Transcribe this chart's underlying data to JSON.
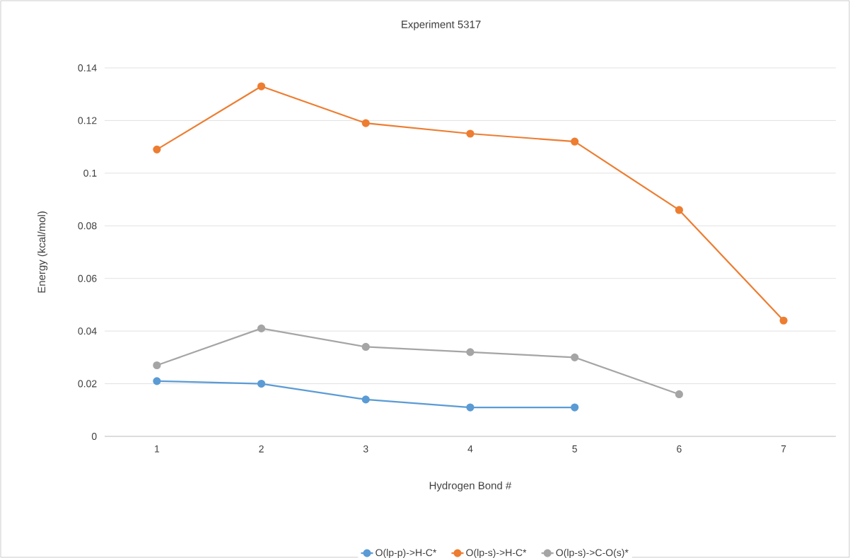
{
  "chart_data": {
    "type": "line",
    "title": "Experiment 5317",
    "xlabel": "Hydrogen Bond #",
    "ylabel": "Energy (kcal/mol)",
    "categories": [
      "1",
      "2",
      "3",
      "4",
      "5",
      "6",
      "7"
    ],
    "series": [
      {
        "name": "O(lp-p)->H-C*",
        "color": "#5b9bd5",
        "values": [
          0.021,
          0.02,
          0.014,
          0.011,
          0.011,
          null,
          null
        ]
      },
      {
        "name": "O(lp-s)->H-C*",
        "color": "#ed7d31",
        "values": [
          0.109,
          0.133,
          0.119,
          0.115,
          0.112,
          0.086,
          0.044
        ]
      },
      {
        "name": "O(lp-s)->C-O(s)*",
        "color": "#a5a5a5",
        "values": [
          0.027,
          0.041,
          0.034,
          0.032,
          0.03,
          0.016,
          null
        ]
      }
    ],
    "ylim": [
      0,
      0.14
    ],
    "yticks": [
      0,
      0.02,
      0.04,
      0.06,
      0.08,
      0.1,
      0.12,
      0.14
    ],
    "grid": "y",
    "legend": "bottom",
    "marker": "circle",
    "line_style": "solid"
  }
}
